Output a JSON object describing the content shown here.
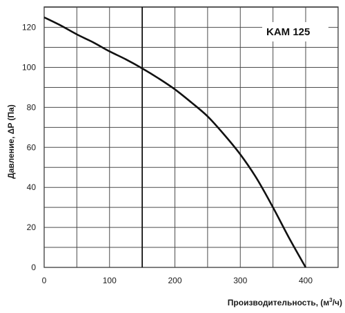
{
  "chart_data": {
    "type": "line",
    "model_label": "KAM 125",
    "ylabel": "Давление, ΔP (Па)",
    "xlabel_text": "Производительность, (м",
    "xlabel_sup": "3",
    "xlabel_tail": "/ч)",
    "xlim": [
      0,
      400
    ],
    "ylim": [
      0,
      130
    ],
    "x_ticks": [
      0,
      100,
      200,
      300,
      400
    ],
    "y_ticks": [
      0,
      20,
      40,
      60,
      80,
      100,
      120
    ],
    "x_grid_step": 50,
    "y_grid_step": 10,
    "grid": true,
    "marker_x": 150,
    "series": [
      {
        "x": [
          0,
          25,
          50,
          75,
          100,
          125,
          150,
          175,
          200,
          225,
          250,
          275,
          300,
          325,
          350,
          375,
          400
        ],
        "values": [
          125,
          121,
          116.5,
          112.5,
          108,
          104,
          99.5,
          94.5,
          89,
          82.5,
          75.5,
          66.5,
          56.5,
          44.5,
          30,
          14.5,
          0
        ]
      }
    ]
  },
  "colors": {
    "curve": "#111111",
    "grid": "#4a4a4a",
    "frame": "#3a3a3a",
    "marker": "#111111",
    "background": "#ffffff"
  }
}
